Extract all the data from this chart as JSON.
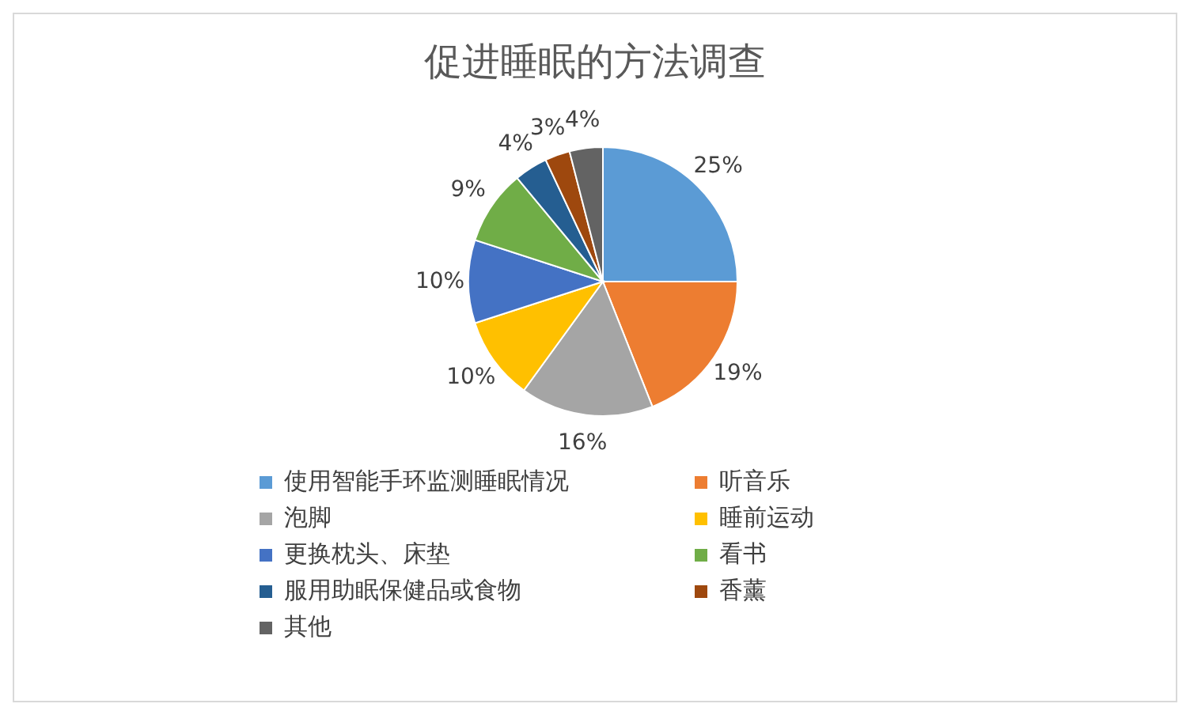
{
  "chart_data": {
    "type": "pie",
    "title": "促进睡眠的方法调查",
    "categories": [
      "使用智能手环监测睡眠情况",
      "听音乐",
      "泡脚",
      "睡前运动",
      "更换枕头、床垫",
      "看书",
      "服用助眠保健品或食物",
      "香薰",
      "其他"
    ],
    "values": [
      25,
      19,
      16,
      10,
      10,
      9,
      4,
      3,
      4
    ],
    "value_labels": [
      "25%",
      "19%",
      "16%",
      "10%",
      "10%",
      "9%",
      "4%",
      "3%",
      "4%"
    ],
    "colors": [
      "#5b9bd5",
      "#ed7d31",
      "#a5a5a5",
      "#ffc000",
      "#4472c4",
      "#70ad47",
      "#255e91",
      "#9e480e",
      "#636363"
    ],
    "legend": "bottom"
  }
}
